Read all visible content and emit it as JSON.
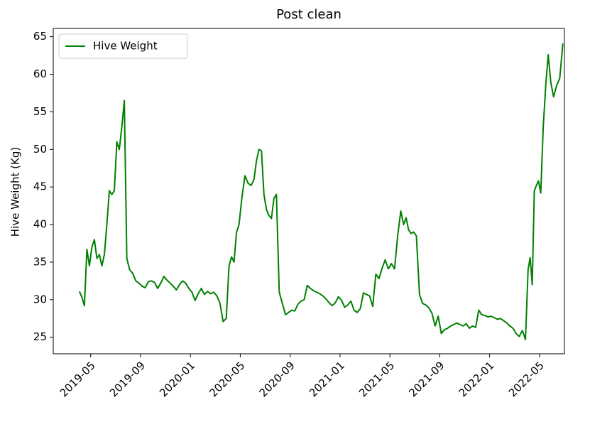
{
  "chart_data": {
    "type": "line",
    "title": "Post clean",
    "y_label": "Hive Weight (Kg)",
    "x": [
      "2019-04",
      "2019-04",
      "2019-04",
      "2019-04",
      "2019-04",
      "2019-05",
      "2019-05",
      "2019-05",
      "2019-05",
      "2019-05",
      "2019-06",
      "2019-06",
      "2019-06",
      "2019-06",
      "2019-06",
      "2019-07",
      "2019-07",
      "2019-07",
      "2019-07",
      "2019-07",
      "2019-08",
      "2019-08",
      "2019-08",
      "2019-08",
      "2019-09",
      "2019-09",
      "2019-09",
      "2019-09",
      "2019-10",
      "2019-10",
      "2019-10",
      "2019-10",
      "2019-11",
      "2019-11",
      "2019-11",
      "2019-11",
      "2019-12",
      "2019-12",
      "2019-12",
      "2019-12",
      "2020-01",
      "2020-01",
      "2020-01",
      "2020-01",
      "2020-02",
      "2020-02",
      "2020-02",
      "2020-02",
      "2020-03",
      "2020-03",
      "2020-03",
      "2020-03",
      "2020-04",
      "2020-04",
      "2020-04",
      "2020-04",
      "2020-04",
      "2020-05",
      "2020-05",
      "2020-05",
      "2020-05",
      "2020-06",
      "2020-06",
      "2020-06",
      "2020-06",
      "2020-06",
      "2020-07",
      "2020-07",
      "2020-07",
      "2020-07",
      "2020-07",
      "2020-08",
      "2020-08",
      "2020-08",
      "2020-08",
      "2020-09",
      "2020-09",
      "2020-09",
      "2020-09",
      "2020-10",
      "2020-10",
      "2020-10",
      "2020-10",
      "2020-11",
      "2020-11",
      "2020-11",
      "2020-11",
      "2020-12",
      "2020-12",
      "2020-12",
      "2020-12",
      "2021-01",
      "2021-01",
      "2021-01",
      "2021-01",
      "2021-02",
      "2021-02",
      "2021-02",
      "2021-02",
      "2021-03",
      "2021-03",
      "2021-03",
      "2021-03",
      "2021-04",
      "2021-04",
      "2021-04",
      "2021-04",
      "2021-05",
      "2021-05",
      "2021-05",
      "2021-05",
      "2021-06",
      "2021-06",
      "2021-06",
      "2021-06",
      "2021-06",
      "2021-07",
      "2021-07",
      "2021-07",
      "2021-07",
      "2021-08",
      "2021-08",
      "2021-08",
      "2021-08",
      "2021-09",
      "2021-09",
      "2021-09",
      "2021-09",
      "2021-10",
      "2021-10",
      "2021-10",
      "2021-10",
      "2021-11",
      "2021-11",
      "2021-11",
      "2021-11",
      "2021-12",
      "2021-12",
      "2021-12",
      "2021-12",
      "2022-01",
      "2022-01",
      "2022-01",
      "2022-01",
      "2022-02",
      "2022-02",
      "2022-02",
      "2022-02",
      "2022-03",
      "2022-03",
      "2022-03",
      "2022-03",
      "2022-04",
      "2022-04",
      "2022-04",
      "2022-04",
      "2022-04",
      "2022-04",
      "2022-05",
      "2022-05",
      "2022-05",
      "2022-05",
      "2022-05",
      "2022-06",
      "2022-06",
      "2022-06",
      "2022-06"
    ],
    "series": [
      {
        "name": "Hive Weight",
        "color": "#008000",
        "values": [
          31.1,
          30.3,
          29.2,
          36.7,
          34.5,
          37,
          38,
          35.5,
          36,
          34.5,
          36,
          40,
          44.5,
          44,
          44.5,
          51,
          50,
          53,
          56.5,
          35.5,
          34,
          33.5,
          32.5,
          32.2,
          31.8,
          31.6,
          32.4,
          32.5,
          32.3,
          31.5,
          32.2,
          33.1,
          32.6,
          32.2,
          31.8,
          31.3,
          32.0,
          32.5,
          32.2,
          31.5,
          31.0,
          29.9,
          30.8,
          31.5,
          30.7,
          31.1,
          30.8,
          31.0,
          30.5,
          29.5,
          27.1,
          27.5,
          34.5,
          35.7,
          35,
          39,
          40,
          43.5,
          46.5,
          45.5,
          45.2,
          46,
          48.5,
          50,
          49.8,
          44,
          42,
          41.2,
          40.8,
          43.5,
          44,
          31,
          29.5,
          28,
          28.3,
          28.6,
          28.5,
          29.4,
          29.8,
          30,
          31.9,
          31.5,
          31.2,
          31,
          30.8,
          30.5,
          30.1,
          29.6,
          29.2,
          29.6,
          30.4,
          29.9,
          29.0,
          29.3,
          29.8,
          28.6,
          28.3,
          28.8,
          30.9,
          30.7,
          30.5,
          29.1,
          33.4,
          32.8,
          34.2,
          35.3,
          34.1,
          34.8,
          34.1,
          38.5,
          41.8,
          40,
          40.9,
          39.3,
          38.8,
          39,
          38.5,
          30.7,
          29.5,
          29.3,
          28.9,
          28.2,
          26.5,
          27.8,
          25.5,
          26,
          26.2,
          26.5,
          26.7,
          26.9,
          26.7,
          26.5,
          26.8,
          26.2,
          26.5,
          26.3,
          28.6,
          28,
          27.9,
          27.7,
          27.8,
          27.6,
          27.4,
          27.5,
          27.2,
          26.9,
          26.5,
          26.2,
          25.5,
          25.1,
          25.9,
          24.7,
          34,
          35.6,
          32,
          44.5,
          45.2,
          45.8,
          44.2,
          53,
          58.5,
          62.6,
          59,
          57,
          58.5,
          59.5,
          64.1
        ]
      }
    ],
    "xlim": [
      "2019-02",
      "2022-07"
    ],
    "xticks": [
      "2019-05",
      "2019-09",
      "2020-01",
      "2020-05",
      "2020-09",
      "2021-01",
      "2021-05",
      "2021-09",
      "2022-01",
      "2022-05"
    ],
    "ylim": [
      22.8,
      66.1
    ],
    "yticks": [
      25,
      30,
      35,
      40,
      45,
      50,
      55,
      60,
      65
    ],
    "legend": "upper left"
  }
}
